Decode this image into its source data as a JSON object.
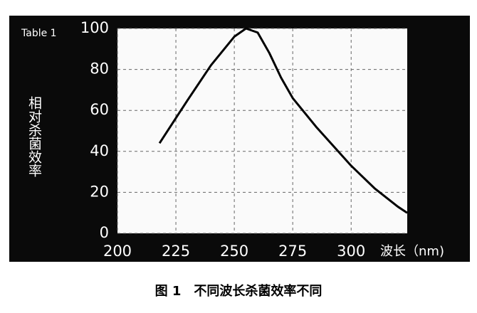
{
  "chart_data": {
    "type": "line",
    "annotation": "Table 1",
    "ylabel": "相对杀菌效率",
    "xlabel": "波长（nm)",
    "caption": "图 1　不同波长杀菌效率不同",
    "x": [
      218,
      230,
      240,
      250,
      255,
      260,
      265,
      270,
      275,
      285,
      300,
      310,
      320,
      324
    ],
    "series": [
      {
        "color": "#000000",
        "values": [
          44,
          65,
          82,
          96,
          100,
          98,
          88,
          76,
          66,
          52,
          33,
          22,
          13,
          10
        ]
      }
    ],
    "xlim": [
      200,
      324
    ],
    "ylim": [
      0,
      100
    ],
    "xticks": [
      200,
      225,
      250,
      275,
      300
    ],
    "yticks": [
      0,
      20,
      40,
      60,
      80,
      100
    ],
    "grid": true
  }
}
